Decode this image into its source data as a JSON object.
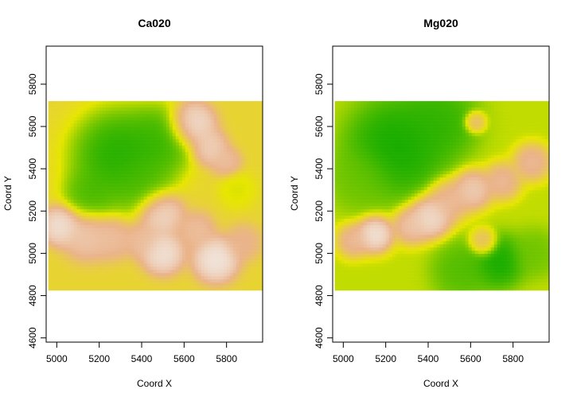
{
  "chart_data": [
    {
      "type": "heatmap",
      "title": "Ca020",
      "xlabel": "Coord X",
      "ylabel": "Coord Y",
      "xlim": [
        4950,
        5970
      ],
      "ylim": [
        4580,
        5980
      ],
      "x_ticks": [
        "5000",
        "5200",
        "5400",
        "5600",
        "5800"
      ],
      "y_ticks": [
        "4600",
        "4800",
        "5000",
        "5200",
        "5400",
        "5600",
        "5800"
      ],
      "data_extent": {
        "x": [
          4960,
          5970
        ],
        "y": [
          4825,
          5720
        ]
      },
      "colormap": [
        "#00a600",
        "#e6e600",
        "#eab38a",
        "#f2f2f2"
      ],
      "hotspots": [
        {
          "x": 5290,
          "y": 5460,
          "v": 0.0,
          "r": 160
        },
        {
          "x": 5480,
          "y": 5530,
          "v": 0.05,
          "r": 120
        },
        {
          "x": 5160,
          "y": 5280,
          "v": 0.08,
          "r": 90
        },
        {
          "x": 5390,
          "y": 5340,
          "v": 0.1,
          "r": 110
        },
        {
          "x": 5850,
          "y": 5300,
          "v": 0.3,
          "r": 60
        },
        {
          "x": 5640,
          "y": 5610,
          "v": 0.95,
          "r": 75
        },
        {
          "x": 5720,
          "y": 5500,
          "v": 0.85,
          "r": 60
        },
        {
          "x": 5800,
          "y": 5430,
          "v": 0.75,
          "r": 50
        },
        {
          "x": 5020,
          "y": 5130,
          "v": 0.95,
          "r": 65
        },
        {
          "x": 5140,
          "y": 5080,
          "v": 0.8,
          "r": 80
        },
        {
          "x": 5260,
          "y": 5070,
          "v": 0.75,
          "r": 70
        },
        {
          "x": 5490,
          "y": 5190,
          "v": 0.9,
          "r": 75
        },
        {
          "x": 5500,
          "y": 5000,
          "v": 0.95,
          "r": 70
        },
        {
          "x": 5400,
          "y": 5060,
          "v": 0.75,
          "r": 60
        },
        {
          "x": 5750,
          "y": 4970,
          "v": 0.98,
          "r": 75
        },
        {
          "x": 5660,
          "y": 5110,
          "v": 0.75,
          "r": 60
        },
        {
          "x": 5880,
          "y": 5050,
          "v": 0.7,
          "r": 60
        }
      ],
      "base_value": 0.45
    },
    {
      "type": "heatmap",
      "title": "Mg020",
      "xlabel": "Coord X",
      "ylabel": "Coord Y",
      "xlim": [
        4950,
        5970
      ],
      "ylim": [
        4580,
        5980
      ],
      "x_ticks": [
        "5000",
        "5200",
        "5400",
        "5600",
        "5800"
      ],
      "y_ticks": [
        "4600",
        "4800",
        "5000",
        "5200",
        "5400",
        "5600",
        "5800"
      ],
      "data_extent": {
        "x": [
          4960,
          5970
        ],
        "y": [
          4825,
          5720
        ]
      },
      "colormap": [
        "#00a600",
        "#e6e600",
        "#eab38a",
        "#f2f2f2"
      ],
      "hotspots": [
        {
          "x": 5250,
          "y": 5500,
          "v": 0.0,
          "r": 170
        },
        {
          "x": 5450,
          "y": 5620,
          "v": 0.05,
          "r": 130
        },
        {
          "x": 5080,
          "y": 5350,
          "v": 0.15,
          "r": 110
        },
        {
          "x": 5730,
          "y": 4960,
          "v": 0.0,
          "r": 90
        },
        {
          "x": 5560,
          "y": 4920,
          "v": 0.1,
          "r": 100
        },
        {
          "x": 5900,
          "y": 5000,
          "v": 0.15,
          "r": 80
        },
        {
          "x": 5150,
          "y": 5090,
          "v": 0.98,
          "r": 60
        },
        {
          "x": 5050,
          "y": 5060,
          "v": 0.75,
          "r": 55
        },
        {
          "x": 5410,
          "y": 5170,
          "v": 0.95,
          "r": 70
        },
        {
          "x": 5320,
          "y": 5130,
          "v": 0.8,
          "r": 60
        },
        {
          "x": 5500,
          "y": 5250,
          "v": 0.75,
          "r": 70
        },
        {
          "x": 5610,
          "y": 5300,
          "v": 0.85,
          "r": 65
        },
        {
          "x": 5750,
          "y": 5340,
          "v": 0.75,
          "r": 60
        },
        {
          "x": 5890,
          "y": 5430,
          "v": 0.75,
          "r": 60
        },
        {
          "x": 5620,
          "y": 5620,
          "v": 0.7,
          "r": 35
        },
        {
          "x": 5660,
          "y": 5050,
          "v": 0.7,
          "r": 45
        }
      ],
      "base_value": 0.28
    }
  ]
}
